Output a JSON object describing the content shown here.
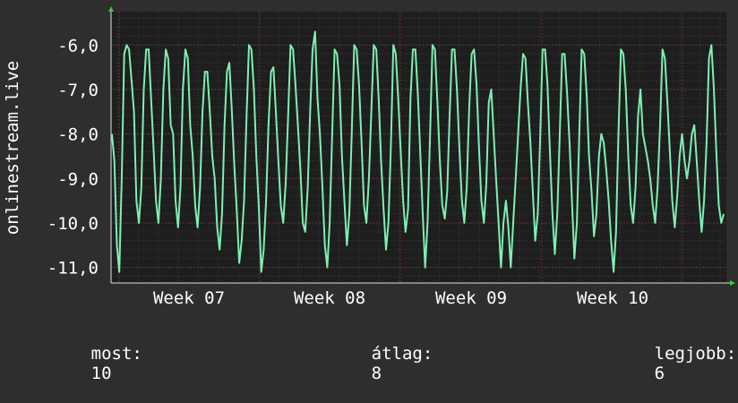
{
  "chart_data": {
    "type": "line",
    "ylabel": "onlinestream.live",
    "yticks": [
      "-6,0",
      "-7,0",
      "-8,0",
      "-9,0",
      "-10,0",
      "-11,0"
    ],
    "ytick_values": [
      -6,
      -7,
      -8,
      -9,
      -10,
      -11
    ],
    "xticks": [
      "Week 07",
      "Week 08",
      "Week 09",
      "Week 10"
    ],
    "ylim": [
      -11.35,
      -5.25
    ],
    "grid": true,
    "colors": {
      "background": "#2e2e2e",
      "plot": "#1e1e1e",
      "line": "#7df0b4",
      "major_grid": "#6a2e2e",
      "minor_grid": "#3a3a3a",
      "axis_arrow": "#2fd12f",
      "text": "#ffffff"
    },
    "series": [
      {
        "values": [
          -8.0,
          -8.6,
          -10.5,
          -11.1,
          -9.0,
          -6.2,
          -6.0,
          -6.1,
          -6.8,
          -7.5,
          -9.5,
          -10.0,
          -9.2,
          -7.0,
          -6.1,
          -6.1,
          -7.2,
          -8.3,
          -9.5,
          -10.0,
          -9.0,
          -7.0,
          -6.1,
          -6.3,
          -7.8,
          -8.0,
          -9.5,
          -10.1,
          -9.2,
          -7.0,
          -6.1,
          -6.3,
          -7.8,
          -8.5,
          -9.6,
          -10.1,
          -9.2,
          -7.5,
          -6.6,
          -6.6,
          -7.5,
          -8.5,
          -9.0,
          -10.1,
          -10.6,
          -9.8,
          -7.8,
          -6.6,
          -6.4,
          -7.5,
          -8.7,
          -9.7,
          -10.9,
          -10.4,
          -9.5,
          -7.6,
          -6.0,
          -6.1,
          -7.0,
          -8.5,
          -9.6,
          -11.1,
          -10.6,
          -9.5,
          -7.8,
          -6.6,
          -6.5,
          -7.5,
          -8.6,
          -9.6,
          -10.0,
          -9.1,
          -7.6,
          -6.0,
          -6.1,
          -6.9,
          -7.8,
          -8.8,
          -10.0,
          -10.2,
          -9.2,
          -7.5,
          -6.1,
          -5.7,
          -7.2,
          -8.0,
          -9.2,
          -10.5,
          -11.0,
          -10.0,
          -8.0,
          -6.1,
          -6.2,
          -6.9,
          -8.5,
          -9.5,
          -10.5,
          -9.8,
          -8.0,
          -6.0,
          -6.1,
          -6.9,
          -8.2,
          -9.6,
          -10.0,
          -9.0,
          -7.5,
          -6.0,
          -6.1,
          -7.2,
          -8.6,
          -9.7,
          -10.6,
          -10.0,
          -8.3,
          -6.0,
          -6.2,
          -7.2,
          -8.4,
          -9.5,
          -10.2,
          -9.7,
          -7.2,
          -6.1,
          -6.1,
          -7.1,
          -8.4,
          -9.8,
          -11.0,
          -10.0,
          -8.0,
          -6.0,
          -6.1,
          -7.3,
          -8.6,
          -9.6,
          -9.9,
          -9.3,
          -7.6,
          -6.1,
          -6.1,
          -7.0,
          -8.3,
          -9.5,
          -10.0,
          -9.2,
          -7.4,
          -6.2,
          -6.1,
          -6.9,
          -8.3,
          -9.5,
          -10.0,
          -9.1,
          -7.3,
          -7.0,
          -8.0,
          -9.0,
          -10.0,
          -11.0,
          -10.0,
          -9.5,
          -10.1,
          -11.0,
          -10.0,
          -9.0,
          -8.0,
          -7.0,
          -6.2,
          -6.3,
          -7.3,
          -8.2,
          -9.3,
          -10.4,
          -9.8,
          -8.1,
          -6.1,
          -6.1,
          -6.9,
          -8.4,
          -9.8,
          -10.7,
          -9.8,
          -8.0,
          -6.2,
          -6.2,
          -7.1,
          -8.2,
          -9.5,
          -10.8,
          -10.0,
          -8.0,
          -6.1,
          -6.2,
          -7.1,
          -8.5,
          -9.3,
          -10.3,
          -9.8,
          -8.5,
          -8.0,
          -8.2,
          -8.8,
          -9.5,
          -10.4,
          -11.1,
          -10.2,
          -8.0,
          -6.1,
          -6.2,
          -7.0,
          -8.5,
          -9.6,
          -10.0,
          -9.2,
          -7.6,
          -7.0,
          -8.0,
          -8.3,
          -8.6,
          -9.0,
          -9.6,
          -10.0,
          -9.2,
          -7.8,
          -6.1,
          -6.3,
          -7.3,
          -8.4,
          -9.5,
          -10.1,
          -9.4,
          -8.5,
          -8.0,
          -8.6,
          -9.0,
          -8.6,
          -8.0,
          -7.8,
          -8.6,
          -9.5,
          -10.2,
          -9.5,
          -8.2,
          -6.3,
          -6.0,
          -7.0,
          -8.4,
          -9.6,
          -10.0,
          -9.8
        ]
      }
    ],
    "stats": {
      "now_label": "most:",
      "now_value": "10",
      "avg_label": "átlag:",
      "avg_value": "8",
      "best_label": "legjobb:",
      "best_value": "6"
    }
  }
}
